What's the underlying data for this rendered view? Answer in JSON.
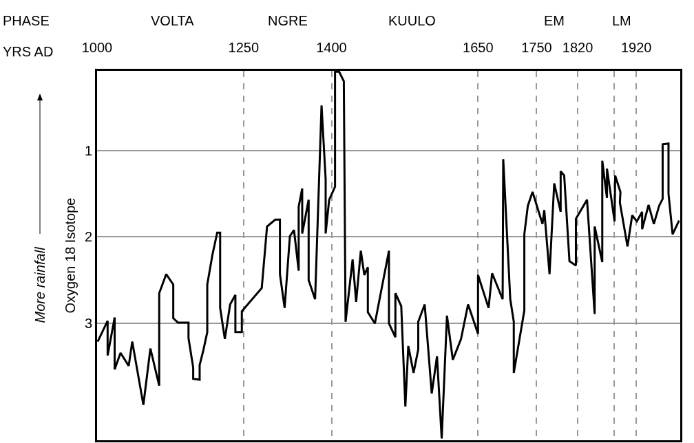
{
  "chart_data": {
    "type": "line",
    "ylabel": "Oxygen 18 Isotope",
    "annotations": [
      "PHASE",
      "YRS AD",
      "More rainfall",
      "VOLTA",
      "NGRE",
      "KUULO",
      "EM",
      "LM"
    ],
    "x": [
      1001,
      1018,
      1018,
      1030,
      1030,
      1040,
      1054,
      1060,
      1079,
      1091,
      1106,
      1106,
      1118,
      1130,
      1130,
      1138,
      1156,
      1156,
      1164,
      1164,
      1175,
      1175,
      1181,
      1188,
      1188,
      1197,
      1205,
      1210,
      1210,
      1218,
      1227,
      1236,
      1236,
      1247,
      1247,
      1281,
      1290,
      1304,
      1312,
      1312,
      1320,
      1329,
      1336,
      1344,
      1344,
      1350,
      1350,
      1361,
      1361,
      1372,
      1383,
      1390,
      1390,
      1396,
      1406,
      1406,
      1413,
      1421,
      1424,
      1436,
      1442,
      1450,
      1456,
      1462,
      1462,
      1474,
      1498,
      1498,
      1509,
      1509,
      1519,
      1526,
      1531,
      1540,
      1548,
      1548,
      1559,
      1571,
      1580,
      1588,
      1597,
      1607,
      1621,
      1633,
      1650,
      1650,
      1668,
      1674,
      1692,
      1693,
      1705,
      1711,
      1711,
      1729,
      1729,
      1735,
      1743,
      1760,
      1763,
      1772,
      1780,
      1791,
      1791,
      1797,
      1806,
      1817,
      1817,
      1836,
      1849,
      1849,
      1862,
      1862,
      1870,
      1870,
      1883,
      1884,
      1893,
      1892,
      1905,
      1913,
      1921,
      1930,
      1930,
      1941,
      1950,
      1959,
      1965,
      1965,
      1975,
      1975,
      1982,
      1993
    ],
    "series": [
      {
        "color": "#000000",
        "values": [
          3.21,
          2.97,
          3.37,
          2.93,
          3.53,
          3.34,
          3.49,
          3.21,
          3.94,
          3.29,
          3.72,
          2.65,
          2.43,
          2.55,
          2.94,
          2.99,
          2.99,
          3.17,
          3.51,
          3.64,
          3.65,
          3.48,
          3.32,
          3.1,
          2.55,
          2.2,
          1.95,
          1.95,
          2.82,
          3.18,
          2.78,
          2.67,
          3.1,
          3.1,
          2.86,
          2.59,
          1.88,
          1.8,
          1.8,
          2.43,
          2.82,
          1.99,
          1.92,
          2.39,
          1.65,
          1.44,
          1.96,
          1.57,
          2.5,
          2.72,
          0.48,
          1.33,
          1.96,
          1.57,
          1.42,
          0.09,
          0.09,
          0.2,
          2.98,
          2.26,
          2.75,
          2.16,
          2.44,
          2.35,
          2.87,
          3.0,
          2.16,
          3.0,
          3.16,
          2.65,
          2.8,
          3.96,
          3.26,
          3.57,
          3.3,
          2.98,
          2.78,
          3.81,
          3.38,
          4.33,
          2.91,
          3.42,
          3.18,
          2.78,
          3.12,
          2.44,
          2.82,
          2.42,
          2.72,
          1.1,
          2.72,
          2.98,
          3.57,
          2.85,
          1.97,
          1.64,
          1.48,
          1.85,
          1.69,
          2.43,
          1.38,
          1.71,
          1.24,
          1.29,
          2.28,
          2.33,
          1.79,
          1.57,
          2.89,
          1.88,
          2.29,
          1.12,
          1.55,
          1.21,
          1.82,
          1.29,
          1.48,
          1.6,
          2.11,
          1.75,
          1.82,
          1.71,
          1.91,
          1.63,
          1.85,
          1.64,
          1.56,
          0.93,
          0.92,
          1.5,
          1.97,
          1.81
        ]
      }
    ],
    "xlim": [
      1000,
      1995
    ],
    "ylim": [
      4.35,
      0.08
    ],
    "xticks": [
      1000,
      1250,
      1400,
      1650,
      1750,
      1820,
      {
        "value": 1882,
        "label": null
      },
      1920
    ],
    "yticks": [
      1,
      2,
      3
    ],
    "grid": true
  }
}
